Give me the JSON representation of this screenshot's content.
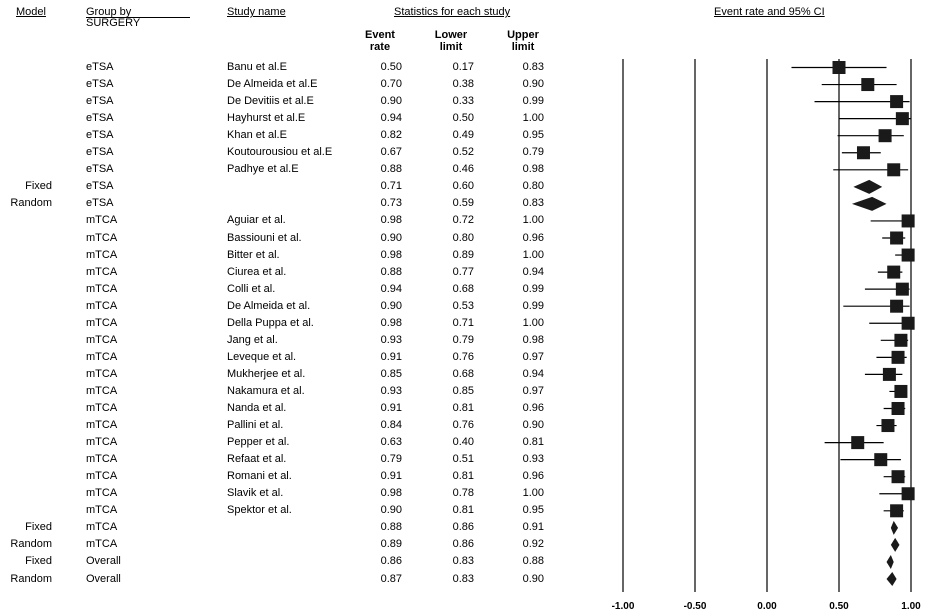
{
  "headers": {
    "model": "Model",
    "group_by": "Group by",
    "group_sub": "SURGERY",
    "study_name": "Study name",
    "stats": "Statistics for each study",
    "event_rate_l1": "Event",
    "event_rate_l2": "rate",
    "lower_l1": "Lower",
    "lower_l2": "limit",
    "upper_l1": "Upper",
    "upper_l2": "limit",
    "plot_title": "Event rate and 95% CI"
  },
  "chart_data": {
    "type": "forest",
    "xlim": [
      -1.0,
      1.0
    ],
    "xticks": [
      "-1.00",
      "-0.50",
      "0.00",
      "0.50",
      "1.00"
    ],
    "xtick_values": [
      -1.0,
      -0.5,
      0.0,
      0.5,
      1.0
    ],
    "rows": [
      {
        "model": "",
        "group": "eTSA",
        "study": "Banu et al.E",
        "event": "0.50",
        "lower": "0.17",
        "upper": "0.83",
        "kind": "study"
      },
      {
        "model": "",
        "group": "eTSA",
        "study": "De Almeida et al.E",
        "event": "0.70",
        "lower": "0.38",
        "upper": "0.90",
        "kind": "study"
      },
      {
        "model": "",
        "group": "eTSA",
        "study": "De Devitiis et al.E",
        "event": "0.90",
        "lower": "0.33",
        "upper": "0.99",
        "kind": "study"
      },
      {
        "model": "",
        "group": "eTSA",
        "study": "Hayhurst et al.E",
        "event": "0.94",
        "lower": "0.50",
        "upper": "1.00",
        "kind": "study"
      },
      {
        "model": "",
        "group": "eTSA",
        "study": "Khan et al.E",
        "event": "0.82",
        "lower": "0.49",
        "upper": "0.95",
        "kind": "study"
      },
      {
        "model": "",
        "group": "eTSA",
        "study": "Koutourousiou et al.E",
        "event": "0.67",
        "lower": "0.52",
        "upper": "0.79",
        "kind": "study"
      },
      {
        "model": "",
        "group": "eTSA",
        "study": "Padhye et al.E",
        "event": "0.88",
        "lower": "0.46",
        "upper": "0.98",
        "kind": "study"
      },
      {
        "model": "Fixed",
        "group": "eTSA",
        "study": "",
        "event": "0.71",
        "lower": "0.60",
        "upper": "0.80",
        "kind": "summary"
      },
      {
        "model": "Random",
        "group": "eTSA",
        "study": "",
        "event": "0.73",
        "lower": "0.59",
        "upper": "0.83",
        "kind": "summary"
      },
      {
        "model": "",
        "group": "mTCA",
        "study": "Aguiar et al.",
        "event": "0.98",
        "lower": "0.72",
        "upper": "1.00",
        "kind": "study"
      },
      {
        "model": "",
        "group": "mTCA",
        "study": "Bassiouni et al.",
        "event": "0.90",
        "lower": "0.80",
        "upper": "0.96",
        "kind": "study"
      },
      {
        "model": "",
        "group": "mTCA",
        "study": "Bitter et al.",
        "event": "0.98",
        "lower": "0.89",
        "upper": "1.00",
        "kind": "study"
      },
      {
        "model": "",
        "group": "mTCA",
        "study": "Ciurea et al.",
        "event": "0.88",
        "lower": "0.77",
        "upper": "0.94",
        "kind": "study"
      },
      {
        "model": "",
        "group": "mTCA",
        "study": "Colli et al.",
        "event": "0.94",
        "lower": "0.68",
        "upper": "0.99",
        "kind": "study"
      },
      {
        "model": "",
        "group": "mTCA",
        "study": "De Almeida et al.",
        "event": "0.90",
        "lower": "0.53",
        "upper": "0.99",
        "kind": "study"
      },
      {
        "model": "",
        "group": "mTCA",
        "study": "Della Puppa et al.",
        "event": "0.98",
        "lower": "0.71",
        "upper": "1.00",
        "kind": "study"
      },
      {
        "model": "",
        "group": "mTCA",
        "study": "Jang et al.",
        "event": "0.93",
        "lower": "0.79",
        "upper": "0.98",
        "kind": "study"
      },
      {
        "model": "",
        "group": "mTCA",
        "study": "Leveque et al.",
        "event": "0.91",
        "lower": "0.76",
        "upper": "0.97",
        "kind": "study"
      },
      {
        "model": "",
        "group": "mTCA",
        "study": "Mukherjee et al.",
        "event": "0.85",
        "lower": "0.68",
        "upper": "0.94",
        "kind": "study"
      },
      {
        "model": "",
        "group": "mTCA",
        "study": "Nakamura et al.",
        "event": "0.93",
        "lower": "0.85",
        "upper": "0.97",
        "kind": "study"
      },
      {
        "model": "",
        "group": "mTCA",
        "study": "Nanda et al.",
        "event": "0.91",
        "lower": "0.81",
        "upper": "0.96",
        "kind": "study"
      },
      {
        "model": "",
        "group": "mTCA",
        "study": "Pallini et al.",
        "event": "0.84",
        "lower": "0.76",
        "upper": "0.90",
        "kind": "study"
      },
      {
        "model": "",
        "group": "mTCA",
        "study": "Pepper et al.",
        "event": "0.63",
        "lower": "0.40",
        "upper": "0.81",
        "kind": "study"
      },
      {
        "model": "",
        "group": "mTCA",
        "study": "Refaat et al.",
        "event": "0.79",
        "lower": "0.51",
        "upper": "0.93",
        "kind": "study"
      },
      {
        "model": "",
        "group": "mTCA",
        "study": "Romani et al.",
        "event": "0.91",
        "lower": "0.81",
        "upper": "0.96",
        "kind": "study"
      },
      {
        "model": "",
        "group": "mTCA",
        "study": "Slavik et al.",
        "event": "0.98",
        "lower": "0.78",
        "upper": "1.00",
        "kind": "study"
      },
      {
        "model": "",
        "group": "mTCA",
        "study": "Spektor et al.",
        "event": "0.90",
        "lower": "0.81",
        "upper": "0.95",
        "kind": "study"
      },
      {
        "model": "Fixed",
        "group": "mTCA",
        "study": "",
        "event": "0.88",
        "lower": "0.86",
        "upper": "0.91",
        "kind": "summary"
      },
      {
        "model": "Random",
        "group": "mTCA",
        "study": "",
        "event": "0.89",
        "lower": "0.86",
        "upper": "0.92",
        "kind": "summary"
      },
      {
        "model": "Fixed",
        "group": "Overall",
        "study": "",
        "event": "0.86",
        "lower": "0.83",
        "upper": "0.88",
        "kind": "summary"
      },
      {
        "model": "Random",
        "group": "Overall",
        "study": "",
        "event": "0.87",
        "lower": "0.83",
        "upper": "0.90",
        "kind": "summary"
      }
    ]
  }
}
